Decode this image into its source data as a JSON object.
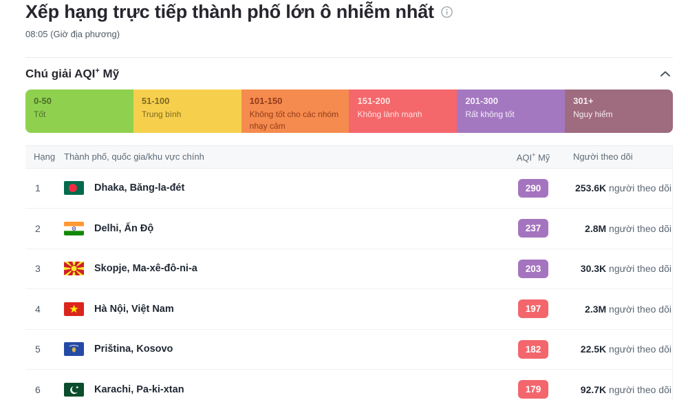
{
  "page": {
    "title": "Xếp hạng trực tiếp thành phố lớn ô nhiễm nhất",
    "local_time": "08:05 (Giờ địa phương)"
  },
  "legend": {
    "heading_prefix": "Chú giải AQI",
    "heading_sup": "+",
    "heading_suffix": " Mỹ",
    "segments": [
      {
        "range": "0-50",
        "label": "Tốt",
        "bg": "#8fd14f",
        "fg": "rgba(40,45,20,0.62)"
      },
      {
        "range": "51-100",
        "label": "Trung bình",
        "bg": "#f6d04d",
        "fg": "rgba(70,55,15,0.68)"
      },
      {
        "range": "101-150",
        "label": "Không tốt cho các nhóm nhạy cảm",
        "bg": "#f58b4e",
        "fg": "rgba(105,25,5,0.72)"
      },
      {
        "range": "151-200",
        "label": "Không lành mạnh",
        "bg": "#f4676b",
        "fg": "rgba(255,232,232,0.95)"
      },
      {
        "range": "201-300",
        "label": "Rất không tốt",
        "bg": "#a478c1",
        "fg": "#f6eef9"
      },
      {
        "range": "301+",
        "label": "Nguy hiểm",
        "bg": "#9f6b7e",
        "fg": "#f7eef1"
      }
    ]
  },
  "table": {
    "headers": {
      "rank": "Hạng",
      "city": "Thành phố, quốc gia/khu vực chính",
      "aqi_prefix": "AQI",
      "aqi_sup": "+",
      "aqi_suffix": " Mỹ",
      "followers": "Người theo dõi"
    },
    "followers_suffix": "người theo dõi",
    "rows": [
      {
        "rank": "1",
        "flag": "bangladesh-flag",
        "city": "Dhaka, Băng-la-đét",
        "aqi": "290",
        "aqi_color": "#a574bf",
        "followers": "253.6K"
      },
      {
        "rank": "2",
        "flag": "india-flag",
        "city": "Delhi, Ấn Độ",
        "aqi": "237",
        "aqi_color": "#a574bf",
        "followers": "2.8M"
      },
      {
        "rank": "3",
        "flag": "north-macedonia-flag",
        "city": "Skopje, Ma-xê-đô-ni-a",
        "aqi": "203",
        "aqi_color": "#a574bf",
        "followers": "30.3K"
      },
      {
        "rank": "4",
        "flag": "vietnam-flag",
        "city": "Hà Nội, Việt Nam",
        "aqi": "197",
        "aqi_color": "#f2666c",
        "followers": "2.3M"
      },
      {
        "rank": "5",
        "flag": "kosovo-flag",
        "city": "Priština, Kosovo",
        "aqi": "182",
        "aqi_color": "#f2666c",
        "followers": "22.5K"
      },
      {
        "rank": "6",
        "flag": "pakistan-flag",
        "city": "Karachi, Pa-ki-xtan",
        "aqi": "179",
        "aqi_color": "#f2666c",
        "followers": "92.7K"
      }
    ]
  }
}
